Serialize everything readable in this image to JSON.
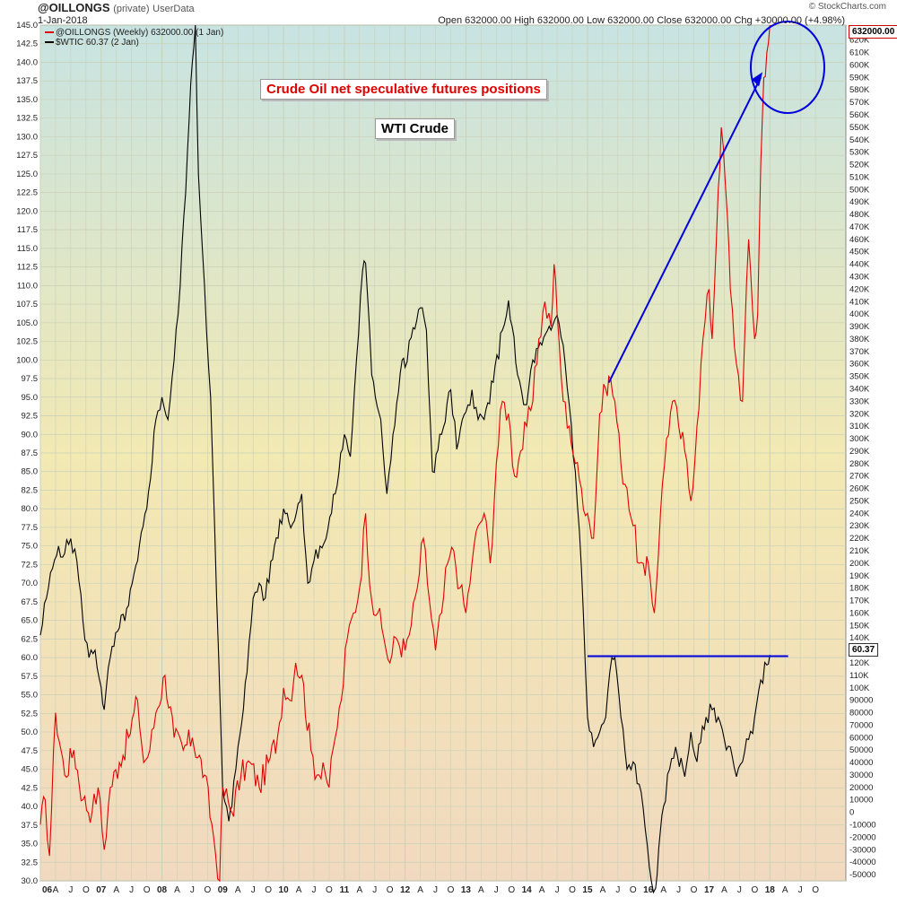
{
  "header": {
    "ticker": "@OILLONGS",
    "tag": "(private)",
    "source": "UserData",
    "date": "1-Jan-2018",
    "watermark": "© StockCharts.com",
    "quote": "Open 632000.00  High 632000.00  Low 632000.00  Close 632000.00  Chg +30000.00 (+4.98%)"
  },
  "legend": {
    "series1": "@OILLONGS (Weekly) 632000.00 (1 Jan)",
    "series2": "$WTIC 60.37 (2 Jan)"
  },
  "annotations": {
    "title": "Crude Oil net speculative futures positions",
    "subtitle": "WTI Crude"
  },
  "price_tags": {
    "right": "632000.00",
    "left": "60.37"
  },
  "colors": {
    "oillongs": "#e00000",
    "wtic": "#000000",
    "annotation_lines": "#0000dd",
    "grid": "#c9d0b8"
  },
  "chart_data": {
    "type": "line",
    "x_tick_labels": [
      "06",
      "A",
      "J",
      "O",
      "07",
      "A",
      "J",
      "O",
      "08",
      "A",
      "J",
      "O",
      "09",
      "A",
      "J",
      "O",
      "10",
      "A",
      "J",
      "O",
      "11",
      "A",
      "J",
      "O",
      "12",
      "A",
      "J",
      "O",
      "13",
      "A",
      "J",
      "O",
      "14",
      "A",
      "J",
      "O",
      "15",
      "A",
      "J",
      "O",
      "16",
      "A",
      "J",
      "O",
      "17",
      "A",
      "J",
      "O",
      "18",
      "A",
      "J",
      "O"
    ],
    "left_axis": {
      "ylim": [
        30,
        145
      ],
      "ticks": [
        "30.0",
        "32.5",
        "35.0",
        "37.5",
        "40.0",
        "42.5",
        "45.0",
        "47.5",
        "50.0",
        "52.5",
        "55.0",
        "57.5",
        "60.0",
        "62.5",
        "65.0",
        "67.5",
        "70.0",
        "72.5",
        "75.0",
        "77.5",
        "80.0",
        "82.5",
        "85.0",
        "87.5",
        "90.0",
        "92.5",
        "95.0",
        "97.5",
        "100.0",
        "102.5",
        "105.0",
        "107.5",
        "110.0",
        "112.5",
        "115.0",
        "117.5",
        "120.0",
        "122.5",
        "125.0",
        "127.5",
        "130.0",
        "132.5",
        "135.0",
        "137.5",
        "140.0",
        "142.5",
        "145.0"
      ]
    },
    "right_axis": {
      "ylim": [
        -55000,
        632000
      ],
      "ticks": [
        "-50000",
        "-40000",
        "-30000",
        "-20000",
        "-10000",
        "0",
        "10000",
        "20000",
        "30000",
        "40000",
        "50000",
        "60000",
        "70000",
        "80000",
        "90000",
        "100K",
        "110K",
        "120K",
        "130K",
        "140K",
        "150K",
        "160K",
        "170K",
        "180K",
        "190K",
        "200K",
        "210K",
        "220K",
        "230K",
        "240K",
        "250K",
        "260K",
        "270K",
        "280K",
        "290K",
        "300K",
        "310K",
        "320K",
        "330K",
        "340K",
        "350K",
        "360K",
        "370K",
        "380K",
        "390K",
        "400K",
        "410K",
        "420K",
        "430K",
        "440K",
        "450K",
        "460K",
        "470K",
        "480K",
        "490K",
        "500K",
        "510K",
        "520K",
        "530K",
        "540K",
        "550K",
        "560K",
        "570K",
        "580K",
        "590K",
        "600K",
        "610K",
        "620K"
      ]
    },
    "grid": true,
    "series": [
      {
        "name": "$WTIC",
        "axis": "left",
        "points": [
          [
            2006.0,
            63
          ],
          [
            2006.1,
            68
          ],
          [
            2006.2,
            72
          ],
          [
            2006.3,
            75
          ],
          [
            2006.4,
            74
          ],
          [
            2006.5,
            76
          ],
          [
            2006.6,
            73
          ],
          [
            2006.7,
            65
          ],
          [
            2006.8,
            60
          ],
          [
            2006.9,
            61
          ],
          [
            2007.0,
            56
          ],
          [
            2007.05,
            53
          ],
          [
            2007.15,
            60
          ],
          [
            2007.3,
            64
          ],
          [
            2007.45,
            67
          ],
          [
            2007.6,
            73
          ],
          [
            2007.75,
            80
          ],
          [
            2007.9,
            92
          ],
          [
            2008.0,
            95
          ],
          [
            2008.1,
            92
          ],
          [
            2008.2,
            100
          ],
          [
            2008.3,
            110
          ],
          [
            2008.42,
            128
          ],
          [
            2008.5,
            140
          ],
          [
            2008.55,
            145
          ],
          [
            2008.6,
            125
          ],
          [
            2008.7,
            110
          ],
          [
            2008.8,
            95
          ],
          [
            2008.9,
            68
          ],
          [
            2009.0,
            42
          ],
          [
            2009.1,
            38
          ],
          [
            2009.15,
            40
          ],
          [
            2009.25,
            48
          ],
          [
            2009.4,
            58
          ],
          [
            2009.5,
            68
          ],
          [
            2009.6,
            70
          ],
          [
            2009.7,
            68
          ],
          [
            2009.85,
            75
          ],
          [
            2010.0,
            80
          ],
          [
            2010.15,
            78
          ],
          [
            2010.3,
            82
          ],
          [
            2010.4,
            70
          ],
          [
            2010.5,
            73
          ],
          [
            2010.6,
            75
          ],
          [
            2010.7,
            76
          ],
          [
            2010.85,
            82
          ],
          [
            2011.0,
            90
          ],
          [
            2011.1,
            87
          ],
          [
            2011.2,
            100
          ],
          [
            2011.3,
            112
          ],
          [
            2011.35,
            113
          ],
          [
            2011.45,
            98
          ],
          [
            2011.6,
            92
          ],
          [
            2011.7,
            82
          ],
          [
            2011.8,
            90
          ],
          [
            2011.95,
            100
          ],
          [
            2012.0,
            99
          ],
          [
            2012.1,
            103
          ],
          [
            2012.25,
            107
          ],
          [
            2012.35,
            104
          ],
          [
            2012.45,
            85
          ],
          [
            2012.6,
            90
          ],
          [
            2012.75,
            96
          ],
          [
            2012.85,
            88
          ],
          [
            2013.0,
            93
          ],
          [
            2013.1,
            96
          ],
          [
            2013.2,
            92
          ],
          [
            2013.3,
            92
          ],
          [
            2013.45,
            97
          ],
          [
            2013.6,
            104
          ],
          [
            2013.7,
            108
          ],
          [
            2013.85,
            98
          ],
          [
            2013.95,
            94
          ],
          [
            2014.0,
            94
          ],
          [
            2014.1,
            100
          ],
          [
            2014.25,
            102
          ],
          [
            2014.4,
            104
          ],
          [
            2014.5,
            106
          ],
          [
            2014.6,
            102
          ],
          [
            2014.7,
            94
          ],
          [
            2014.8,
            85
          ],
          [
            2014.9,
            72
          ],
          [
            2015.0,
            52
          ],
          [
            2015.1,
            48
          ],
          [
            2015.2,
            50
          ],
          [
            2015.3,
            52
          ],
          [
            2015.4,
            60
          ],
          [
            2015.45,
            60
          ],
          [
            2015.55,
            52
          ],
          [
            2015.65,
            45
          ],
          [
            2015.75,
            46
          ],
          [
            2015.85,
            43
          ],
          [
            2015.95,
            37
          ],
          [
            2016.05,
            30
          ],
          [
            2016.12,
            29
          ],
          [
            2016.25,
            40
          ],
          [
            2016.35,
            45
          ],
          [
            2016.45,
            48
          ],
          [
            2016.6,
            44
          ],
          [
            2016.7,
            50
          ],
          [
            2016.8,
            46
          ],
          [
            2016.95,
            52
          ],
          [
            2017.05,
            53
          ],
          [
            2017.15,
            52
          ],
          [
            2017.25,
            49
          ],
          [
            2017.35,
            48
          ],
          [
            2017.45,
            44
          ],
          [
            2017.55,
            46
          ],
          [
            2017.65,
            49
          ],
          [
            2017.75,
            52
          ],
          [
            2017.85,
            57
          ],
          [
            2017.95,
            59
          ],
          [
            2018.0,
            60.37
          ]
        ]
      },
      {
        "name": "@OILLONGS",
        "axis": "right",
        "points": [
          [
            2006.0,
            -10000
          ],
          [
            2006.08,
            10000
          ],
          [
            2006.15,
            -35000
          ],
          [
            2006.25,
            80000
          ],
          [
            2006.4,
            30000
          ],
          [
            2006.55,
            50000
          ],
          [
            2006.7,
            10000
          ],
          [
            2006.85,
            0
          ],
          [
            2006.95,
            20000
          ],
          [
            2007.05,
            -30000
          ],
          [
            2007.15,
            20000
          ],
          [
            2007.3,
            40000
          ],
          [
            2007.45,
            60000
          ],
          [
            2007.6,
            90000
          ],
          [
            2007.7,
            40000
          ],
          [
            2007.8,
            50000
          ],
          [
            2007.9,
            80000
          ],
          [
            2008.05,
            110000
          ],
          [
            2008.2,
            60000
          ],
          [
            2008.35,
            50000
          ],
          [
            2008.5,
            60000
          ],
          [
            2008.7,
            30000
          ],
          [
            2008.85,
            -20000
          ],
          [
            2008.95,
            -55000
          ],
          [
            2009.0,
            20000
          ],
          [
            2009.15,
            0
          ],
          [
            2009.3,
            30000
          ],
          [
            2009.45,
            40000
          ],
          [
            2009.6,
            20000
          ],
          [
            2009.75,
            40000
          ],
          [
            2009.9,
            60000
          ],
          [
            2010.0,
            100000
          ],
          [
            2010.1,
            90000
          ],
          [
            2010.2,
            120000
          ],
          [
            2010.3,
            110000
          ],
          [
            2010.45,
            50000
          ],
          [
            2010.55,
            30000
          ],
          [
            2010.65,
            40000
          ],
          [
            2010.75,
            20000
          ],
          [
            2010.85,
            60000
          ],
          [
            2010.95,
            90000
          ],
          [
            2011.05,
            140000
          ],
          [
            2011.15,
            160000
          ],
          [
            2011.25,
            180000
          ],
          [
            2011.35,
            240000
          ],
          [
            2011.45,
            170000
          ],
          [
            2011.55,
            160000
          ],
          [
            2011.65,
            140000
          ],
          [
            2011.75,
            120000
          ],
          [
            2011.85,
            140000
          ],
          [
            2012.0,
            130000
          ],
          [
            2012.1,
            150000
          ],
          [
            2012.2,
            180000
          ],
          [
            2012.3,
            220000
          ],
          [
            2012.4,
            170000
          ],
          [
            2012.5,
            130000
          ],
          [
            2012.6,
            160000
          ],
          [
            2012.7,
            200000
          ],
          [
            2012.8,
            210000
          ],
          [
            2012.9,
            180000
          ],
          [
            2013.0,
            160000
          ],
          [
            2013.1,
            200000
          ],
          [
            2013.2,
            230000
          ],
          [
            2013.3,
            240000
          ],
          [
            2013.4,
            200000
          ],
          [
            2013.5,
            280000
          ],
          [
            2013.6,
            330000
          ],
          [
            2013.7,
            320000
          ],
          [
            2013.8,
            270000
          ],
          [
            2013.9,
            290000
          ],
          [
            2014.0,
            310000
          ],
          [
            2014.1,
            330000
          ],
          [
            2014.2,
            380000
          ],
          [
            2014.3,
            410000
          ],
          [
            2014.4,
            390000
          ],
          [
            2014.45,
            440000
          ],
          [
            2014.5,
            400000
          ],
          [
            2014.6,
            330000
          ],
          [
            2014.7,
            310000
          ],
          [
            2014.8,
            280000
          ],
          [
            2014.9,
            260000
          ],
          [
            2015.0,
            240000
          ],
          [
            2015.1,
            220000
          ],
          [
            2015.2,
            320000
          ],
          [
            2015.3,
            340000
          ],
          [
            2015.35,
            350000
          ],
          [
            2015.45,
            330000
          ],
          [
            2015.55,
            280000
          ],
          [
            2015.65,
            260000
          ],
          [
            2015.75,
            230000
          ],
          [
            2015.85,
            200000
          ],
          [
            2015.95,
            190000
          ],
          [
            2016.0,
            200000
          ],
          [
            2016.1,
            160000
          ],
          [
            2016.2,
            240000
          ],
          [
            2016.3,
            300000
          ],
          [
            2016.4,
            330000
          ],
          [
            2016.5,
            310000
          ],
          [
            2016.6,
            290000
          ],
          [
            2016.7,
            250000
          ],
          [
            2016.8,
            310000
          ],
          [
            2016.9,
            380000
          ],
          [
            2017.0,
            420000
          ],
          [
            2017.05,
            380000
          ],
          [
            2017.15,
            500000
          ],
          [
            2017.2,
            550000
          ],
          [
            2017.3,
            480000
          ],
          [
            2017.35,
            420000
          ],
          [
            2017.45,
            360000
          ],
          [
            2017.55,
            330000
          ],
          [
            2017.65,
            460000
          ],
          [
            2017.75,
            380000
          ],
          [
            2017.8,
            400000
          ],
          [
            2017.85,
            520000
          ],
          [
            2017.9,
            590000
          ],
          [
            2017.95,
            610000
          ],
          [
            2018.0,
            632000
          ]
        ]
      }
    ]
  }
}
